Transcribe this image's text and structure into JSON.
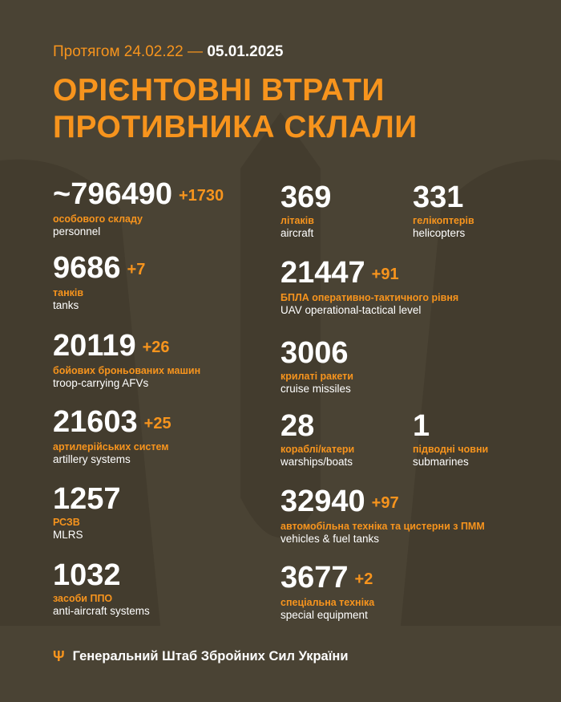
{
  "header": {
    "period_prefix": "Протягом 24.02.22 —",
    "period_end": "05.01.2025",
    "title_line1": "ОРІЄНТОВНІ ВТРАТИ",
    "title_line2": "ПРОТИВНИКА СКЛАЛИ"
  },
  "colors": {
    "background": "#4a4334",
    "accent": "#f7941d",
    "text": "#ffffff"
  },
  "stats": {
    "personnel": {
      "value": "~796490",
      "increase": "+1730",
      "ua": "особового складу",
      "en": "personnel"
    },
    "tanks": {
      "value": "9686",
      "increase": "+7",
      "ua": "танків",
      "en": "tanks"
    },
    "afv": {
      "value": "20119",
      "increase": "+26",
      "ua": "бойових броньованих машин",
      "en": "troop-carrying AFVs"
    },
    "artillery": {
      "value": "21603",
      "increase": "+25",
      "ua": "артилерійських систем",
      "en": "artillery systems"
    },
    "mlrs": {
      "value": "1257",
      "ua": "РСЗВ",
      "en": "MLRS"
    },
    "air_defense": {
      "value": "1032",
      "ua": "засоби ППО",
      "en": "anti-aircraft systems"
    },
    "aircraft": {
      "value": "369",
      "ua": "літаків",
      "en": "aircraft"
    },
    "helicopters": {
      "value": "331",
      "ua": "гелікоптерів",
      "en": "helicopters"
    },
    "uav": {
      "value": "21447",
      "increase": "+91",
      "ua": "БПЛА оперативно-тактичного рівня",
      "en": "UAV operational-tactical level"
    },
    "cruise_missiles": {
      "value": "3006",
      "ua": "крилаті ракети",
      "en": "cruise missiles"
    },
    "warships": {
      "value": "28",
      "ua": "кораблі/катери",
      "en": "warships/boats"
    },
    "submarines": {
      "value": "1",
      "ua": "підводні човни",
      "en": "submarines"
    },
    "vehicles": {
      "value": "32940",
      "increase": "+97",
      "ua": "автомобільна техніка та цистерни з ПММ",
      "en": "vehicles & fuel tanks"
    },
    "special": {
      "value": "3677",
      "increase": "+2",
      "ua": "спеціальна техніка",
      "en": "special equipment"
    }
  },
  "footer": {
    "icon": "trident-icon",
    "text": "Генеральний Штаб Збройних Сил України"
  }
}
